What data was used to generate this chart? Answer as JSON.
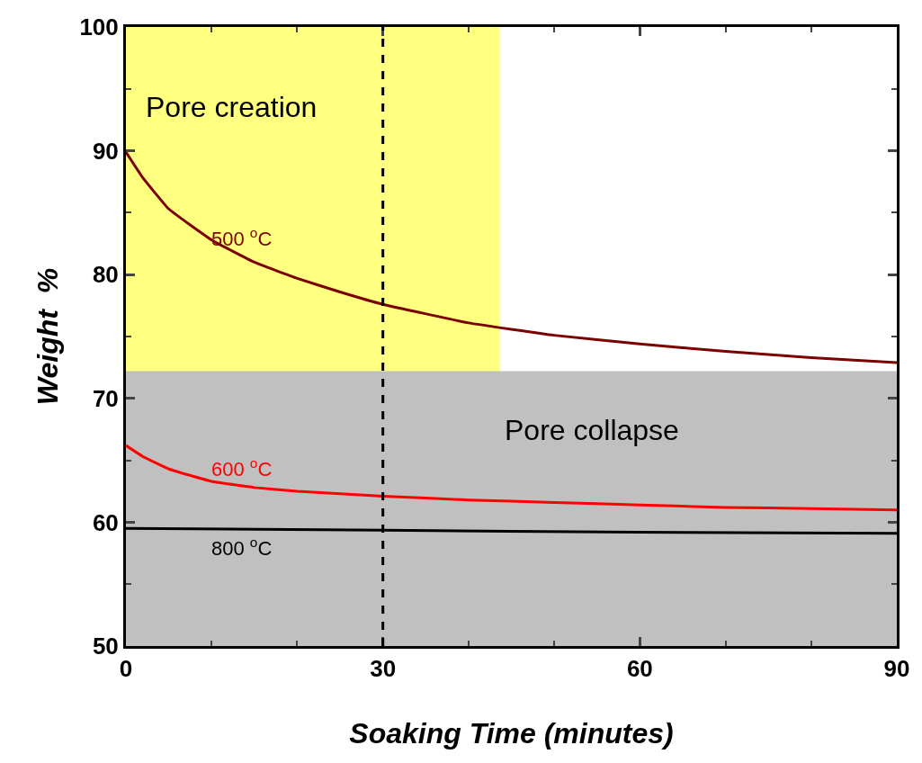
{
  "chart_data": {
    "type": "line",
    "xlabel": "Soaking Time (minutes)",
    "ylabel": "Weight  %",
    "xlim": [
      0,
      90
    ],
    "xticks": [
      0,
      30,
      60,
      90
    ],
    "ylim": [
      50,
      100
    ],
    "yticks": [
      50,
      60,
      70,
      80,
      90,
      100
    ],
    "grid": false,
    "legend": false,
    "marker": "none",
    "line_style": "solid",
    "series": [
      {
        "name": "500 $^{o}$C",
        "color": "#7b0000",
        "x": [
          0,
          2,
          5,
          10,
          15,
          20,
          25,
          30,
          40,
          50,
          60,
          70,
          80,
          90
        ],
        "values": [
          89.9,
          87.8,
          85.3,
          82.8,
          81.0,
          79.7,
          78.6,
          77.6,
          76.1,
          75.1,
          74.4,
          73.8,
          73.3,
          72.9
        ]
      },
      {
        "name": "600 $^{o}$C",
        "color": "#ff0000",
        "x": [
          0,
          2,
          5,
          10,
          15,
          20,
          30,
          40,
          50,
          60,
          70,
          80,
          90
        ],
        "values": [
          66.2,
          65.3,
          64.3,
          63.3,
          62.8,
          62.5,
          62.1,
          61.8,
          61.6,
          61.4,
          61.2,
          61.1,
          61.0
        ]
      },
      {
        "name": "800 $^{o}$C",
        "color": "#000000",
        "x": [
          0,
          30,
          60,
          90
        ],
        "values": [
          59.5,
          59.35,
          59.2,
          59.1
        ]
      }
    ],
    "ref_lines": [
      {
        "axis": "x",
        "value": 30,
        "color": "#000000",
        "line_style": "dashed"
      }
    ],
    "bands": [
      {
        "axis": "x",
        "from": 0,
        "to": 43.7,
        "color": "#ffff80",
        "label": "Pore creation"
      },
      {
        "axis": "y",
        "from": 50,
        "to": 72.2,
        "color": "#c0c0c0",
        "label": "Pore collapse"
      }
    ]
  }
}
